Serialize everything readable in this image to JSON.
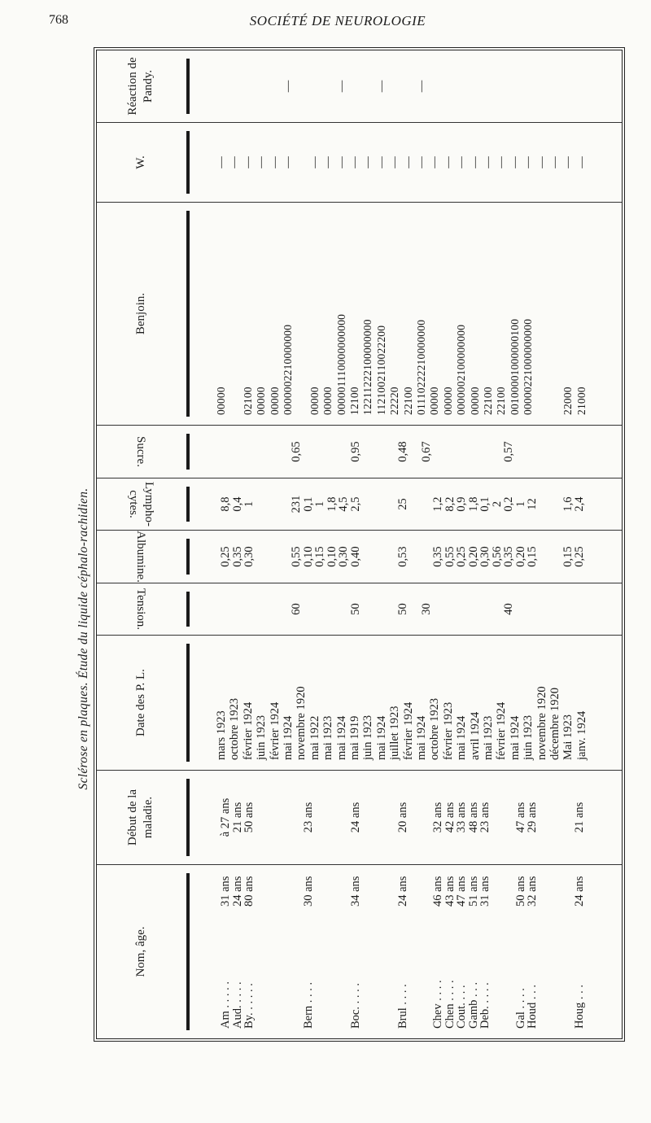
{
  "page": {
    "number": "768",
    "running_head": "SOCIÉTÉ DE NEUROLOGIE",
    "table_title": "Sclérose en plaques. Étude du liquide céphalo-rachidien."
  },
  "headers": {
    "nom": "Nom, âge.",
    "debut": "Début de la maladie.",
    "date": "Date des P. L.",
    "tension": "Tension.",
    "albumine": "Albumine.",
    "lymphocytes": "Lympho- cytes.",
    "sucre": "Sucre.",
    "benjoin": "Benjoin.",
    "w": "W.",
    "pandy": "Réaction de Pandy."
  },
  "patients": [
    {
      "name": "Am . . . . .",
      "age": "31 ans"
    },
    {
      "name": "Aud. . . . .",
      "age": "24 ans"
    },
    {
      "name": "By. . . . . .",
      "age": "80 ans"
    },
    {
      "name": "",
      "age": ""
    },
    {
      "name": "",
      "age": ""
    },
    {
      "name": "",
      "age": ""
    },
    {
      "name": "",
      "age": ""
    },
    {
      "name": "Bern . . . .",
      "age": "30 ans"
    },
    {
      "name": "",
      "age": ""
    },
    {
      "name": "",
      "age": ""
    },
    {
      "name": "",
      "age": ""
    },
    {
      "name": "Boc. . . . .",
      "age": "34 ans"
    },
    {
      "name": "",
      "age": ""
    },
    {
      "name": "",
      "age": ""
    },
    {
      "name": "",
      "age": ""
    },
    {
      "name": "Brul . . . .",
      "age": "24 ans"
    },
    {
      "name": "",
      "age": ""
    },
    {
      "name": "",
      "age": ""
    },
    {
      "name": "Chev . . . .",
      "age": "46 ans"
    },
    {
      "name": "Chen . . . .",
      "age": "43 ans"
    },
    {
      "name": "Cout. . . .",
      "age": "47 ans"
    },
    {
      "name": "Gamb . . .",
      "age": "51 ans"
    },
    {
      "name": "Deb. . . . .",
      "age": "31 ans"
    },
    {
      "name": "",
      "age": ""
    },
    {
      "name": "",
      "age": ""
    },
    {
      "name": "Gal . . . .",
      "age": "50 ans"
    },
    {
      "name": "Houd . . .",
      "age": "32 ans"
    },
    {
      "name": "",
      "age": ""
    },
    {
      "name": "",
      "age": ""
    },
    {
      "name": "",
      "age": ""
    },
    {
      "name": "Houg . . .",
      "age": "24 ans"
    }
  ],
  "debut": [
    "à 27 ans",
    "21 ans",
    "50 ans",
    "",
    "",
    "",
    "",
    "23 ans",
    "",
    "",
    "",
    "24 ans",
    "",
    "",
    "",
    "20 ans",
    "",
    "",
    "32 ans",
    "42 ans",
    "33 ans",
    "48 ans",
    "23 ans",
    "",
    "",
    "47 ans",
    "29 ans",
    "",
    "",
    "",
    "21 ans"
  ],
  "dates": [
    "mars 1923",
    "octobre 1923",
    "février 1924",
    "juin 1923",
    "février 1924",
    "mai 1924",
    "novembre 1920",
    "mai 1922",
    "mai 1923",
    "mai 1924",
    "mai 1919",
    "juin 1923",
    "mai 1924",
    "juillet 1923",
    "février 1924",
    "mai 1924",
    "octobre 1923",
    "février 1923",
    "mai 1924",
    "avril 1924",
    "mai 1923",
    "février 1924",
    "mai 1924",
    "juin 1923",
    "novembre 1920",
    "décembre 1920",
    "Mai 1923",
    "janv. 1924"
  ],
  "tension": [
    "",
    "",
    "",
    "",
    "",
    "",
    "60",
    "",
    "",
    "",
    "",
    "50",
    "",
    "",
    "",
    "50",
    "",
    "30",
    "",
    "",
    "",
    "",
    "",
    "",
    "40"
  ],
  "albumine": [
    "0,25",
    "0,35",
    "0,30",
    "",
    "",
    "",
    "0,55",
    "0,10",
    "0,15",
    "0,10",
    "0,30",
    "0,40",
    "",
    "",
    "",
    "0,53",
    "",
    "",
    "0,35",
    "0,55",
    "0,25",
    "0,20",
    "0,30",
    "0,56",
    "0,35",
    "0,20",
    "0,15",
    "",
    "",
    "0,15",
    "0,25"
  ],
  "lymphocytes": [
    "8,8",
    "0,4",
    "1",
    "",
    "",
    "",
    "231",
    "0,1",
    "1",
    "1,8",
    "4,5",
    "2,5",
    "",
    "",
    "",
    "25",
    "",
    "",
    "1,2",
    "8,2",
    "0,9",
    "1,8",
    "0,1",
    "2",
    "0,2",
    "1",
    "12",
    "",
    "",
    "1,6",
    "2,4"
  ],
  "sucre": [
    "",
    "",
    "",
    "",
    "",
    "",
    "0,65",
    "",
    "",
    "",
    "",
    "0,95",
    "",
    "",
    "",
    "0,48",
    "",
    "0,67",
    "",
    "",
    "",
    "",
    "",
    "",
    "0,57"
  ],
  "benjoin": [
    "00000",
    "",
    "02100",
    "00000",
    "00000",
    "0000002210000000",
    "",
    "00000",
    "00000",
    "000001110000000000",
    "12100",
    "12211222100000000",
    "1121002110022200",
    "22220",
    "22100",
    "01110222210000000",
    "00000",
    "00000",
    "0000002100000000",
    "00000",
    "22100",
    "22100",
    "00100001000000100",
    "00000221000000000",
    "",
    "",
    "22000",
    "21000"
  ],
  "w": [
    "—",
    "—",
    "—",
    "—",
    "—",
    "—",
    "",
    "—",
    "—",
    "—",
    "—",
    "—",
    "—",
    "—",
    "—",
    "—",
    "—",
    "—",
    "—",
    "—",
    "—",
    "—",
    "—",
    "—",
    "—",
    "—",
    "—",
    "—"
  ],
  "pandy": [
    "",
    "",
    "",
    "",
    "",
    "—",
    "",
    "",
    "",
    "—",
    "",
    "",
    "—",
    "",
    "",
    "—"
  ]
}
